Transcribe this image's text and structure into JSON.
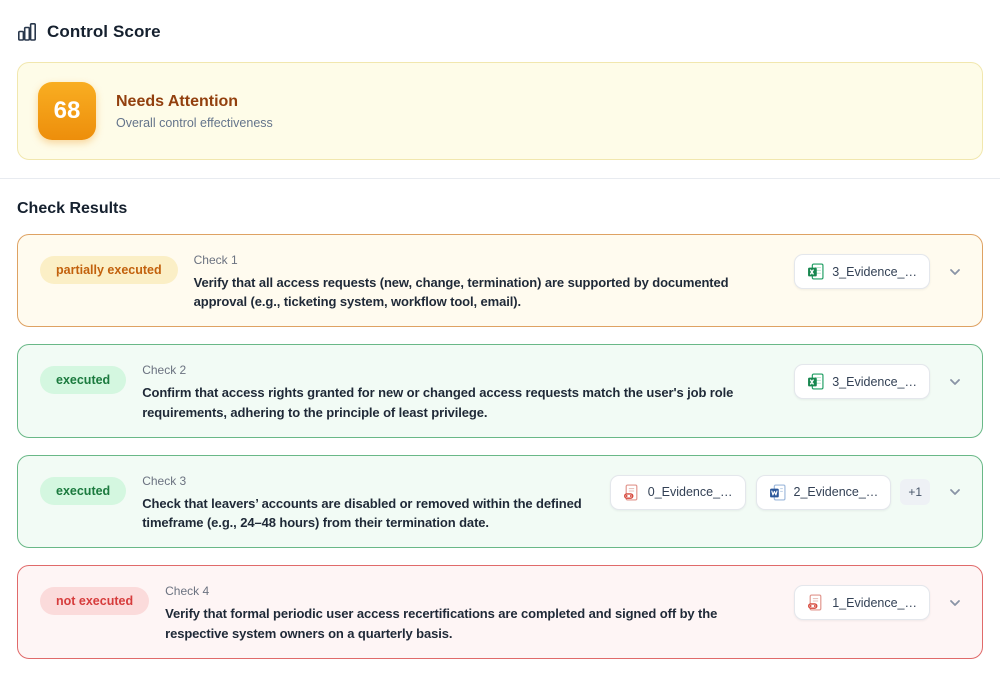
{
  "header": {
    "title": "Control Score"
  },
  "score_card": {
    "score": "68",
    "status": "Needs Attention",
    "subtitle": "Overall control effectiveness"
  },
  "section_title": "Check Results",
  "checks": [
    {
      "status_key": "partial",
      "status": "partially executed",
      "label": "Check 1",
      "description": "Verify that all access requests (new, change, termination) are supported by documented approval (e.g., ticketing system, workflow tool, email).",
      "evidence": [
        {
          "name": "3_Evidence_…",
          "type": "excel",
          "icon": "excel-file-icon"
        }
      ],
      "more_count": ""
    },
    {
      "status_key": "executed",
      "status": "executed",
      "label": "Check 2",
      "description": "Confirm that access rights granted for new or changed access requests match the user's job role requirements, adhering to the principle of least privilege.",
      "evidence": [
        {
          "name": "3_Evidence_…",
          "type": "excel",
          "icon": "excel-file-icon"
        }
      ],
      "more_count": ""
    },
    {
      "status_key": "executed",
      "status": "executed",
      "label": "Check 3",
      "description": "Check that leavers’ accounts are disabled or removed within the defined timeframe (e.g., 24–48 hours) from their termination date.",
      "evidence": [
        {
          "name": "0_Evidence_…",
          "type": "pdf",
          "icon": "pdf-file-icon"
        },
        {
          "name": "2_Evidence_…",
          "type": "word",
          "icon": "word-file-icon"
        }
      ],
      "more_count": "+1"
    },
    {
      "status_key": "failed",
      "status": "not executed",
      "label": "Check 4",
      "description": "Verify that formal periodic user access recertifications are completed and signed off by the respective system owners on a quarterly basis.",
      "evidence": [
        {
          "name": "1_Evidence_…",
          "type": "pdf",
          "icon": "pdf-file-icon"
        }
      ],
      "more_count": ""
    }
  ],
  "colors": {
    "score_accent": "#ED8E0B",
    "score_card_bg": "#FEFCE8",
    "partial_border": "#DEA263",
    "executed_border": "#69B887",
    "failed_border": "#E06A6A",
    "partial_text": "#C2610C",
    "executed_text": "#1B7A3E",
    "failed_text": "#D63C3C"
  }
}
